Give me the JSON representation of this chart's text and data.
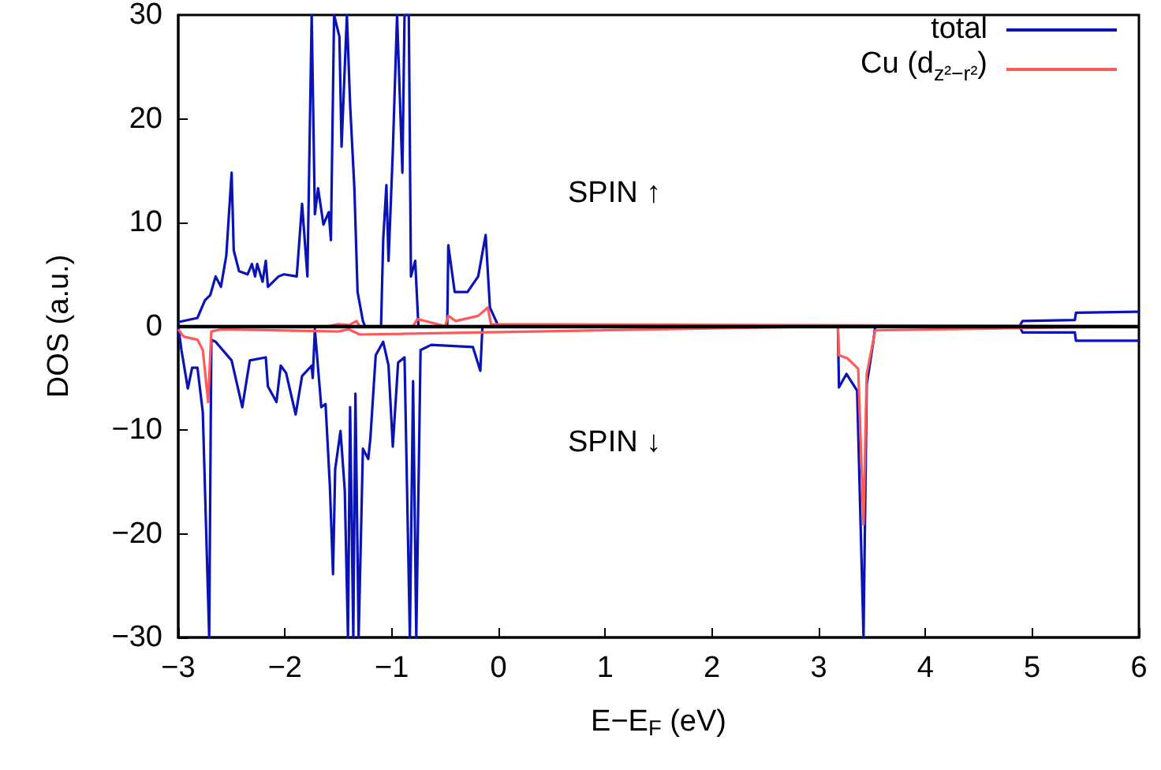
{
  "chart_data": {
    "type": "line",
    "xlabel": "E−E$_{F}$ (eV)",
    "ylabel": "DOS (a.u.)",
    "xlim": [
      -3,
      6
    ],
    "xticks": [
      -3,
      -2,
      -1,
      0,
      1,
      2,
      3,
      4,
      5,
      6
    ],
    "ylim": [
      -30,
      30
    ],
    "yticks": [
      -30,
      -20,
      -10,
      0,
      10,
      20,
      30
    ],
    "grid": false,
    "legend": "top right",
    "annotations": [
      "SPIN ↑",
      "SPIN ↓"
    ],
    "ref_lines": [
      {
        "axis": "y",
        "value": 0,
        "color": "#000000"
      }
    ],
    "series": [
      {
        "name": "total",
        "color": "#0a14b4",
        "x": [
          -3.0,
          -2.82,
          -2.75,
          -2.7,
          -2.65,
          -2.6,
          -2.55,
          -2.5,
          -2.48,
          -2.43,
          -2.35,
          -2.31,
          -2.28,
          -2.26,
          -2.21,
          -2.18,
          -2.16,
          -2.06,
          -2.01,
          -1.89,
          -1.84,
          -1.79,
          -1.75,
          -1.72,
          -1.69,
          -1.64,
          -1.59,
          -1.57,
          -1.54,
          -1.49,
          -1.47,
          -1.42,
          -1.39,
          -1.35,
          -1.32,
          -1.27,
          -1.25,
          -1.1,
          -1.08,
          -1.05,
          -1.03,
          -0.99,
          -0.95,
          -0.9,
          -0.88,
          -0.84,
          -0.82,
          -0.78,
          -0.75,
          -0.48,
          -0.47,
          -0.41,
          -0.29,
          -0.19,
          -0.12,
          -0.08,
          0.0,
          4.88,
          4.91,
          5.4,
          5.41,
          6.0
        ],
        "values": [
          0.4,
          0.8,
          2.5,
          3.0,
          4.8,
          3.8,
          6.8,
          14.8,
          7.3,
          5.3,
          5.0,
          6.0,
          4.8,
          6.0,
          4.3,
          6.3,
          3.8,
          4.8,
          5.0,
          4.8,
          11.8,
          4.8,
          30,
          10.8,
          13.3,
          9.8,
          11,
          8.3,
          30,
          27.9,
          17.3,
          30,
          21.4,
          13.3,
          3.3,
          0.5,
          0,
          0,
          8.3,
          13.6,
          6.3,
          16.8,
          30,
          14.8,
          30,
          30,
          4.8,
          6.3,
          0,
          0,
          7.8,
          3.3,
          3.3,
          4.8,
          8.8,
          1.8,
          0,
          0,
          0.5,
          0.6,
          1.3,
          1.4
        ]
      },
      {
        "color": "#0a14b4",
        "x": [
          -3.0,
          -2.97,
          -2.91,
          -2.87,
          -2.82,
          -2.77,
          -2.71,
          -2.69,
          -2.65,
          -2.5,
          -2.4,
          -2.33,
          -2.18,
          -2.16,
          -2.08,
          -2.04,
          -1.99,
          -1.9,
          -1.84,
          -1.75,
          -1.74,
          -1.72,
          -1.66,
          -1.62,
          -1.58,
          -1.55,
          -1.53,
          -1.48,
          -1.44,
          -1.41,
          -1.39,
          -1.36,
          -1.34,
          -1.31,
          -1.27,
          -1.22,
          -1.2,
          -1.15,
          -1.08,
          -1.03,
          -0.99,
          -0.94,
          -0.88,
          -0.83,
          -0.8,
          -0.77,
          -0.73,
          -0.63,
          -0.24,
          -0.17,
          -0.15,
          3.18,
          3.19,
          3.26,
          3.36,
          3.42,
          3.45,
          3.51,
          3.53,
          4.88,
          4.91,
          5.4,
          5.41,
          6.0
        ],
        "values": [
          0,
          -2.3,
          -6.0,
          -4.0,
          -4.0,
          -8.3,
          -30,
          -1.3,
          -1.5,
          -3.3,
          -7.8,
          -3.3,
          -3.0,
          -5.8,
          -7.3,
          -3.8,
          -4.5,
          -8.5,
          -4.8,
          -3.8,
          -5.0,
          -0.3,
          -7.8,
          -7.5,
          -15.3,
          -23.9,
          -13.8,
          -10.1,
          -15.8,
          -30,
          -7.8,
          -30,
          -6.5,
          -30,
          -11.8,
          -12.8,
          -10.8,
          -2.8,
          -1.5,
          -3.8,
          -11.6,
          -3.5,
          -3.0,
          -30,
          -5.3,
          -30,
          -2.3,
          -1.8,
          -2.0,
          -4.3,
          0,
          0,
          -5.9,
          -4.6,
          -6.2,
          -30,
          -5.6,
          -1.6,
          0,
          0,
          -0.6,
          -0.6,
          -1.4,
          -1.4
        ]
      },
      {
        "name": "Cu (d$_{z²−r²}$)",
        "color": "#ff5a5a",
        "x": [
          -3.0,
          -1.6,
          -1.5,
          -1.4,
          -1.33,
          -1.3,
          -0.8,
          -0.76,
          -0.5,
          -0.47,
          -0.4,
          -0.19,
          -0.1,
          -0.07,
          6.0
        ],
        "values": [
          0,
          0,
          0.2,
          0.1,
          0.5,
          0,
          0,
          0.7,
          0,
          1.0,
          0.5,
          1.0,
          1.8,
          0.2,
          0
        ]
      },
      {
        "color": "#ff5a5a",
        "x": [
          -3.0,
          -2.95,
          -2.82,
          -2.77,
          -2.72,
          -2.69,
          -2.6,
          -1.5,
          -1.4,
          -1.3,
          3.18,
          3.19,
          3.27,
          3.37,
          3.42,
          3.45,
          3.53,
          6.0
        ],
        "values": [
          -0.3,
          -1.0,
          -1.3,
          -2.3,
          -7.3,
          -0.5,
          -0.3,
          -0.5,
          -0.3,
          -0.8,
          0,
          -2.8,
          -3.1,
          -4.1,
          -19.1,
          -4.6,
          -0.4,
          0
        ]
      }
    ]
  }
}
